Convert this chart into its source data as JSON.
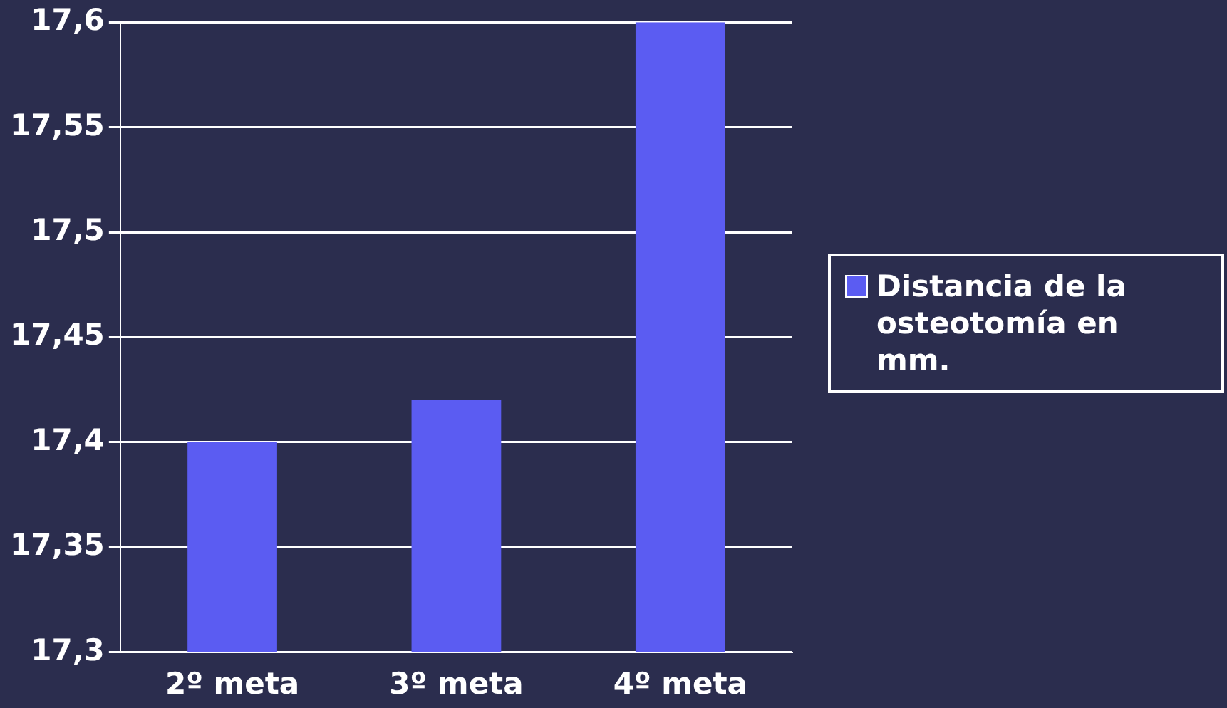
{
  "chart_data": {
    "type": "bar",
    "categories": [
      "2º meta",
      "3º meta",
      "4º meta"
    ],
    "series": [
      {
        "name": "Distancia de la osteotomía en mm.",
        "color": "#5b5cf2",
        "values": [
          17.4,
          17.42,
          17.6
        ]
      }
    ],
    "ylim": [
      17.3,
      17.6
    ],
    "yticks": [
      {
        "value": 17.3,
        "label": "17,3"
      },
      {
        "value": 17.35,
        "label": "17,35"
      },
      {
        "value": 17.4,
        "label": "17,4"
      },
      {
        "value": 17.45,
        "label": "17,45"
      },
      {
        "value": 17.5,
        "label": "17,5"
      },
      {
        "value": 17.55,
        "label": "17,55"
      },
      {
        "value": 17.6,
        "label": "17,6"
      }
    ],
    "grid": "y",
    "legend": "right"
  }
}
